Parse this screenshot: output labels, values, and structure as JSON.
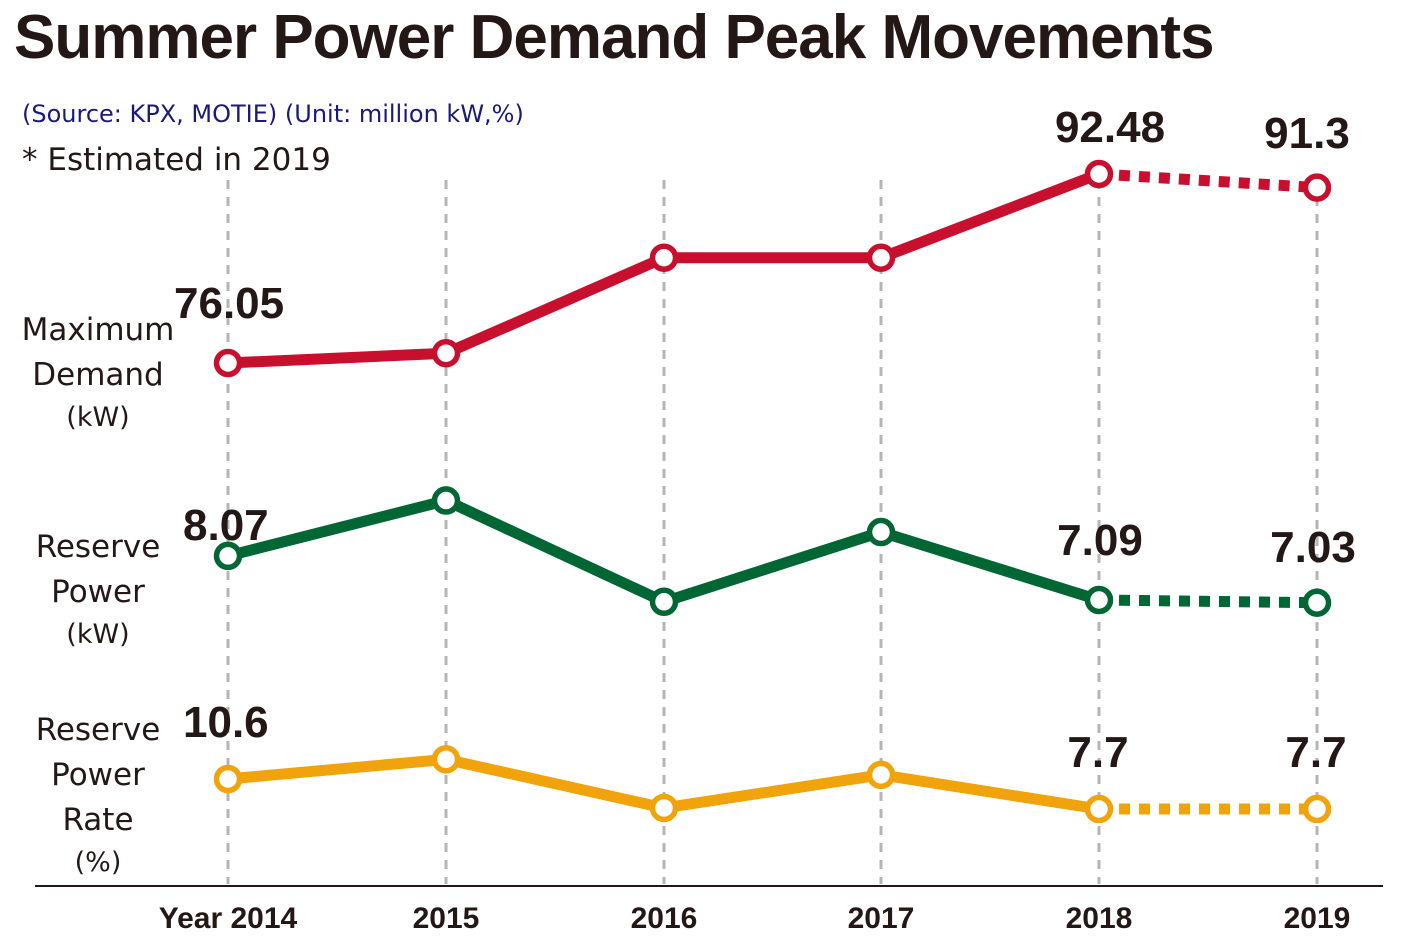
{
  "header": {
    "title": "Summer Power Demand Peak Movements",
    "source": "(Source: KPX, MOTIE) (Unit: million kW,%)",
    "note": "* Estimated in 2019"
  },
  "row_labels": [
    {
      "lines": [
        "Maximum",
        "Demand"
      ],
      "unit": "(kW)"
    },
    {
      "lines": [
        "Reserve",
        "Power"
      ],
      "unit": "(kW)"
    },
    {
      "lines": [
        "Reserve",
        "Power",
        "Rate"
      ],
      "unit": "(%)"
    }
  ],
  "chart_data": {
    "type": "line",
    "categories": [
      "Year 2014",
      "2015",
      "2016",
      "2017",
      "2018",
      "2019"
    ],
    "estimated_from_index": 4,
    "series": [
      {
        "key": "max_demand",
        "name": "Maximum Demand (kW)",
        "color": "#c8102e",
        "values": [
          76.05,
          76.9,
          85.2,
          85.2,
          92.48,
          91.3
        ],
        "labels": {
          "0": "76.05",
          "4": "92.48",
          "5": "91.3"
        }
      },
      {
        "key": "reserve_power",
        "name": "Reserve Power (kW)",
        "color": "#006633",
        "values": [
          8.07,
          9.3,
          7.05,
          8.6,
          7.09,
          7.03
        ],
        "labels": {
          "0": "8.07",
          "4": "7.09",
          "5": "7.03"
        }
      },
      {
        "key": "reserve_rate",
        "name": "Reserve Power Rate (%)",
        "color": "#f0a30a",
        "values": [
          10.6,
          12.5,
          7.8,
          11.0,
          7.7,
          7.7
        ],
        "labels": {
          "0": "10.6",
          "4": "7.7",
          "5": "7.7"
        }
      }
    ]
  }
}
